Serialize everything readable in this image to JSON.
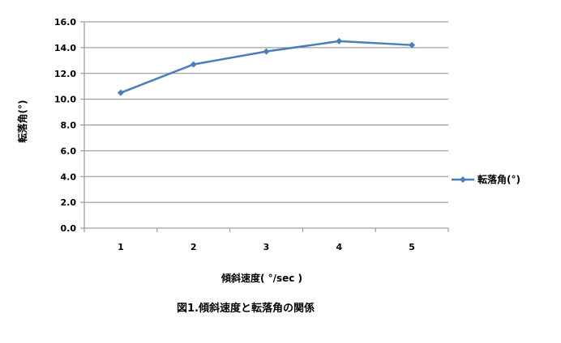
{
  "chart_data": {
    "type": "line",
    "x": [
      1,
      2,
      3,
      4,
      5
    ],
    "categories": [
      "1",
      "2",
      "3",
      "4",
      "5"
    ],
    "series": [
      {
        "name": "転落角(°)",
        "values": [
          10.5,
          12.7,
          13.7,
          14.5,
          14.2
        ]
      }
    ],
    "ylim": [
      0,
      16
    ],
    "ytick_labels": [
      "0.0",
      "2.0",
      "4.0",
      "6.0",
      "8.0",
      "10.0",
      "12.0",
      "14.0",
      "16.0"
    ],
    "xlabel": "傾斜速度( °/sec )",
    "ylabel": "転落角(°)",
    "grid": true,
    "legend": "right",
    "series_color": "#4a7ebb"
  },
  "caption": "図1.傾斜速度と転落角の関係"
}
